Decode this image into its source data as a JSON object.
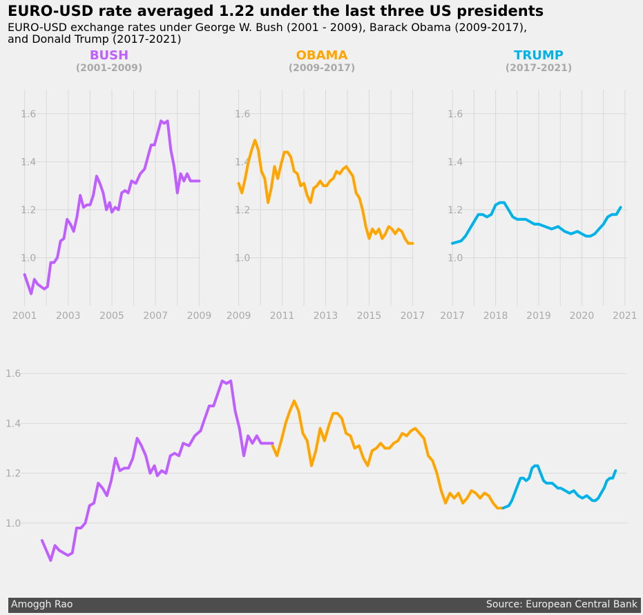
{
  "title": "EURO-USD rate averaged 1.22 under the last three US presidents",
  "subtitle_line1": "EURO-USD exchange rates under George W. Bush (2001 - 2009), Barack Obama (2009-2017),",
  "subtitle_line2": "and Donald Trump (2017-2021)",
  "footer": {
    "author": "Amoggh Rao",
    "source": "Source: European Central Bank"
  },
  "colors": {
    "bush": "#bf5fff",
    "obama": "#ffa500",
    "trump": "#00b2e7",
    "grid": "#d9d9d9",
    "tick": "#a9a9a9",
    "background": "#f0f0f0",
    "footer_bg": "#4d4d4d"
  },
  "chart_data": {
    "type": "line",
    "y_ticks": [
      1.0,
      1.2,
      1.4,
      1.6
    ],
    "y_tick_labels": [
      "1.0",
      "1.2",
      "1.4",
      "1.6"
    ],
    "ylim": [
      0.8,
      1.7
    ],
    "grid": true,
    "panels": [
      {
        "president": "BUSH",
        "period": "(2001-2009)",
        "xlim": [
          2000.95,
          2009.05
        ],
        "x_ticks": [
          2001,
          2003,
          2005,
          2007,
          2009
        ],
        "x_tick_labels": [
          "2001",
          "2003",
          "2005",
          "2007",
          "2009"
        ],
        "series": "bush"
      },
      {
        "president": "OBAMA",
        "period": "(2009-2017)",
        "xlim": [
          2008.95,
          2017.05
        ],
        "x_ticks": [
          2009,
          2011,
          2013,
          2015,
          2017
        ],
        "x_tick_labels": [
          "2009",
          "2011",
          "2013",
          "2015",
          "2017"
        ],
        "series": "obama"
      },
      {
        "president": "TRUMP",
        "period": "(2017-2021)",
        "xlim": [
          2016.95,
          2021.05
        ],
        "x_ticks": [
          2017,
          2018,
          2019,
          2020,
          2021
        ],
        "x_tick_labels": [
          "2017",
          "2018",
          "2019",
          "2020",
          "2021"
        ],
        "series": "trump"
      }
    ],
    "combined": {
      "xlim": [
        2000.5,
        2021.3
      ],
      "series": [
        "bush",
        "obama",
        "trump"
      ]
    },
    "series": {
      "bush": {
        "x": [
          2001.0,
          2001.15,
          2001.3,
          2001.45,
          2001.6,
          2001.75,
          2001.9,
          2002.05,
          2002.2,
          2002.35,
          2002.5,
          2002.65,
          2002.8,
          2002.95,
          2003.1,
          2003.25,
          2003.4,
          2003.55,
          2003.7,
          2003.85,
          2004.0,
          2004.15,
          2004.3,
          2004.45,
          2004.6,
          2004.75,
          2004.9,
          2005.0,
          2005.15,
          2005.3,
          2005.45,
          2005.6,
          2005.75,
          2005.9,
          2006.1,
          2006.3,
          2006.5,
          2006.65,
          2006.8,
          2006.95,
          2007.1,
          2007.25,
          2007.4,
          2007.55,
          2007.7,
          2007.85,
          2008.0,
          2008.15,
          2008.3,
          2008.45,
          2008.6,
          2008.75,
          2008.9,
          2009.0
        ],
        "y": [
          0.93,
          0.89,
          0.85,
          0.91,
          0.89,
          0.88,
          0.87,
          0.88,
          0.98,
          0.98,
          1.0,
          1.07,
          1.08,
          1.16,
          1.14,
          1.11,
          1.17,
          1.26,
          1.21,
          1.22,
          1.22,
          1.26,
          1.34,
          1.31,
          1.27,
          1.2,
          1.23,
          1.19,
          1.21,
          1.2,
          1.27,
          1.28,
          1.27,
          1.32,
          1.31,
          1.35,
          1.37,
          1.42,
          1.47,
          1.47,
          1.52,
          1.57,
          1.56,
          1.57,
          1.45,
          1.38,
          1.27,
          1.35,
          1.32,
          1.35,
          1.32,
          1.32,
          1.32,
          1.32
        ]
      },
      "obama": {
        "x": [
          2009.0,
          2009.15,
          2009.3,
          2009.45,
          2009.6,
          2009.75,
          2009.9,
          2010.05,
          2010.2,
          2010.35,
          2010.5,
          2010.65,
          2010.8,
          2010.95,
          2011.1,
          2011.25,
          2011.4,
          2011.55,
          2011.7,
          2011.85,
          2012.0,
          2012.15,
          2012.3,
          2012.45,
          2012.6,
          2012.75,
          2012.9,
          2013.05,
          2013.2,
          2013.35,
          2013.5,
          2013.65,
          2013.8,
          2013.95,
          2014.1,
          2014.25,
          2014.4,
          2014.55,
          2014.7,
          2014.85,
          2015.0,
          2015.15,
          2015.3,
          2015.45,
          2015.6,
          2015.75,
          2015.9,
          2016.05,
          2016.2,
          2016.35,
          2016.5,
          2016.65,
          2016.8,
          2017.0
        ],
        "y": [
          1.31,
          1.27,
          1.33,
          1.4,
          1.45,
          1.49,
          1.45,
          1.36,
          1.33,
          1.23,
          1.29,
          1.38,
          1.33,
          1.39,
          1.44,
          1.44,
          1.42,
          1.36,
          1.35,
          1.3,
          1.31,
          1.26,
          1.23,
          1.29,
          1.3,
          1.32,
          1.3,
          1.3,
          1.32,
          1.33,
          1.36,
          1.35,
          1.37,
          1.38,
          1.36,
          1.34,
          1.27,
          1.25,
          1.2,
          1.13,
          1.08,
          1.12,
          1.1,
          1.12,
          1.08,
          1.1,
          1.13,
          1.12,
          1.1,
          1.12,
          1.11,
          1.08,
          1.06,
          1.06
        ]
      },
      "trump": {
        "x": [
          2017.0,
          2017.1,
          2017.2,
          2017.3,
          2017.4,
          2017.5,
          2017.6,
          2017.7,
          2017.8,
          2017.9,
          2018.0,
          2018.1,
          2018.2,
          2018.3,
          2018.4,
          2018.5,
          2018.6,
          2018.7,
          2018.8,
          2018.9,
          2019.0,
          2019.15,
          2019.3,
          2019.45,
          2019.6,
          2019.75,
          2019.9,
          2020.0,
          2020.1,
          2020.2,
          2020.3,
          2020.4,
          2020.5,
          2020.6,
          2020.7,
          2020.8,
          2020.9
        ],
        "y": [
          1.06,
          1.065,
          1.07,
          1.09,
          1.12,
          1.15,
          1.18,
          1.18,
          1.17,
          1.18,
          1.22,
          1.23,
          1.23,
          1.2,
          1.17,
          1.16,
          1.16,
          1.16,
          1.15,
          1.14,
          1.14,
          1.13,
          1.12,
          1.13,
          1.11,
          1.1,
          1.11,
          1.1,
          1.09,
          1.09,
          1.1,
          1.12,
          1.14,
          1.17,
          1.18,
          1.18,
          1.21
        ]
      }
    }
  }
}
